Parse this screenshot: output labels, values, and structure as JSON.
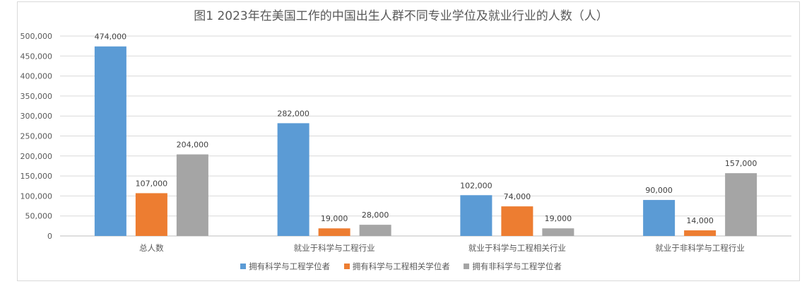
{
  "chart_data": {
    "type": "bar",
    "title": "图1 2023年在美国工作的中国出生人群不同专业学位及就业行业的人数（人）",
    "categories": [
      "总人数",
      "就业于科学与工程行业",
      "就业于科学与工程相关行业",
      "就业于非科学与工程行业"
    ],
    "series": [
      {
        "name": "拥有科学与工程学位者",
        "color": "#5b9bd5",
        "values": [
          474000,
          282000,
          102000,
          90000
        ],
        "labels": [
          "474,000",
          "282,000",
          "102,000",
          "90,000"
        ]
      },
      {
        "name": "拥有科学与工程相关学位者",
        "color": "#ed7d31",
        "values": [
          107000,
          19000,
          74000,
          14000
        ],
        "labels": [
          "107,000",
          "19,000",
          "74,000",
          "14,000"
        ]
      },
      {
        "name": "拥有非科学与工程学位者",
        "color": "#a5a5a5",
        "values": [
          204000,
          28000,
          19000,
          157000
        ],
        "labels": [
          "204,000",
          "28,000",
          "19,000",
          "157,000"
        ]
      }
    ],
    "ylim": [
      0,
      500000
    ],
    "yticks": [
      "0",
      "50,000",
      "100,000",
      "150,000",
      "200,000",
      "250,000",
      "300,000",
      "350,000",
      "400,000",
      "450,000",
      "500,000"
    ],
    "grid": true,
    "legend_position": "bottom"
  }
}
